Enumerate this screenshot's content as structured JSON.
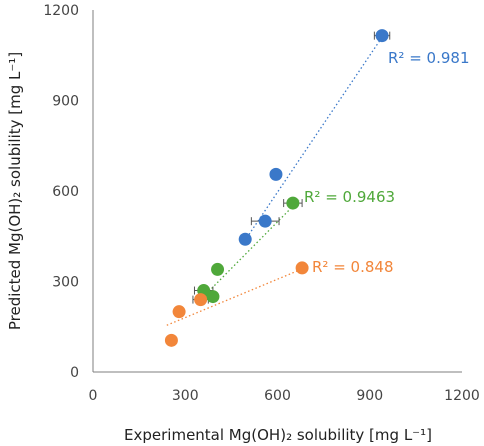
{
  "chart_data": {
    "type": "scatter",
    "title": "",
    "xlabel": "Experimental Mg(OH)₂ solubility [mg L⁻¹]",
    "ylabel": "Predicted Mg(OH)₂ solubility [mg L⁻¹]",
    "xlim": [
      0,
      1200
    ],
    "ylim": [
      0,
      1200
    ],
    "xticks": [
      "0",
      "300",
      "600",
      "900",
      "1200"
    ],
    "yticks": [
      "0",
      "300",
      "600",
      "900",
      "1200"
    ],
    "grid": false,
    "series": [
      {
        "color": "#3a78c9",
        "points": [
          {
            "x": 940,
            "y": 1115,
            "xerr": 25
          },
          {
            "x": 595,
            "y": 655,
            "xerr": 0
          },
          {
            "x": 560,
            "y": 500,
            "xerr": 45
          },
          {
            "x": 495,
            "y": 440,
            "xerr": 0
          }
        ],
        "trendline": [
          [
            500,
            445
          ],
          [
            950,
            1125
          ]
        ],
        "r2_label": "R² = 0.981"
      },
      {
        "color": "#4fa83a",
        "points": [
          {
            "x": 650,
            "y": 560,
            "xerr": 30
          },
          {
            "x": 405,
            "y": 340,
            "xerr": 0
          },
          {
            "x": 360,
            "y": 270,
            "xerr": 30
          },
          {
            "x": 390,
            "y": 250,
            "xerr": 0
          }
        ],
        "trendline": [
          [
            340,
            230
          ],
          [
            670,
            570
          ]
        ],
        "r2_label": "R² = 0.9463"
      },
      {
        "color": "#f2863a",
        "points": [
          {
            "x": 680,
            "y": 345,
            "xerr": 0
          },
          {
            "x": 350,
            "y": 240,
            "xerr": 25
          },
          {
            "x": 280,
            "y": 200,
            "xerr": 0
          },
          {
            "x": 255,
            "y": 105,
            "xerr": 0
          }
        ],
        "trendline": [
          [
            240,
            155
          ],
          [
            700,
            350
          ]
        ],
        "r2_label": "R² = 0.848"
      }
    ]
  }
}
